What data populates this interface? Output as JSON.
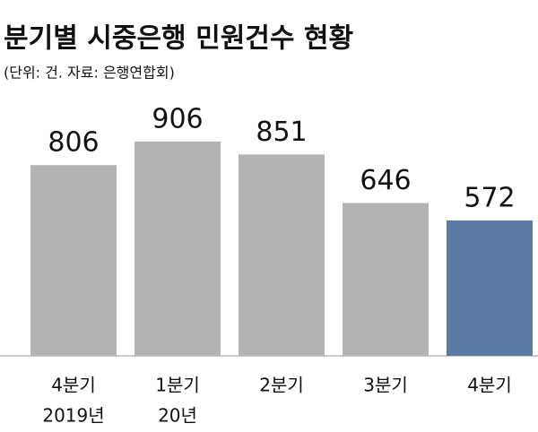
{
  "chart_data": {
    "type": "bar",
    "title": "분기별 시중은행 민원건수 현황",
    "subtitle": "(단위: 건. 자료: 은행연합회)",
    "categories": [
      [
        "4분기",
        "2019년"
      ],
      [
        "1분기",
        "20년"
      ],
      [
        "2분기"
      ],
      [
        "3분기"
      ],
      [
        "4분기"
      ]
    ],
    "values": [
      806,
      906,
      851,
      646,
      572
    ],
    "colors": [
      "#b3b3b3",
      "#b3b3b3",
      "#b3b3b3",
      "#b3b3b3",
      "#5a7ba3"
    ],
    "ylim": [
      0,
      1000
    ]
  }
}
